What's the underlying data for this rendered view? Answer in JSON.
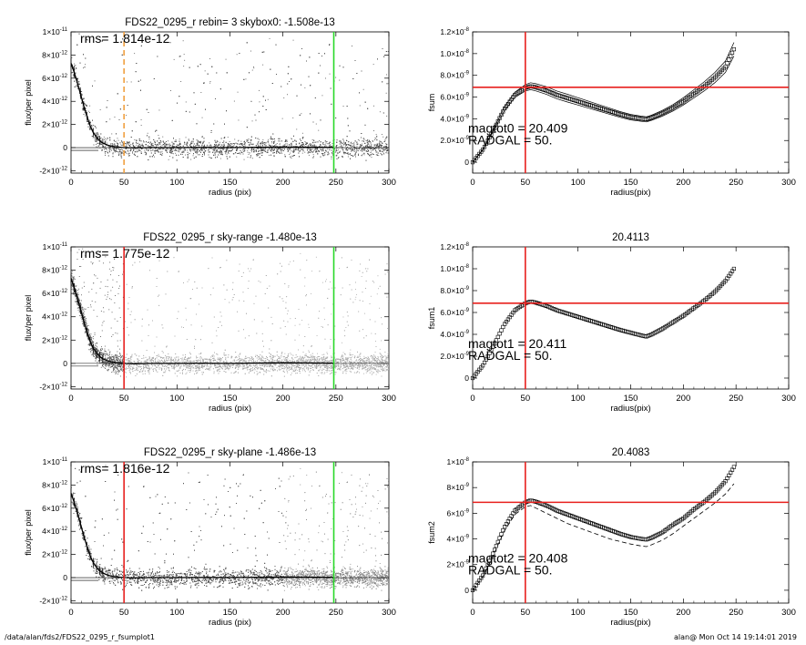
{
  "footer": {
    "left": "/data/alan/fds2/FDS22_0295_r_fsumplot1",
    "right": "alan@  Mon Oct 14 19:14:01 2019"
  },
  "colors": {
    "red": "#e8201e",
    "green": "#28d828",
    "orange": "#f0a040",
    "scatter_dark": "#505050",
    "scatter_light": "#b4b4b4"
  },
  "chart_data": [
    {
      "type": "scatter",
      "title": "FDS22_0295_r rebin= 3    skybox0: -1.508e-13",
      "xlabel": "radius (pix)",
      "ylabel": "flux/per pixel",
      "xlim": [
        0,
        300
      ],
      "ylim": [
        -2.2e-12,
        1e-11
      ],
      "x_ticks": [
        "0",
        "50",
        "100",
        "150",
        "200",
        "250",
        "300"
      ],
      "y_ticks": [
        {
          "v": 1e-11,
          "m": "1×10",
          "e": "-11"
        },
        {
          "v": 8e-12,
          "m": "8×10",
          "e": "-12"
        },
        {
          "v": 6e-12,
          "m": "6×10",
          "e": "-12"
        },
        {
          "v": 4e-12,
          "m": "4×10",
          "e": "-12"
        },
        {
          "v": 2e-12,
          "m": "2×10",
          "e": "-12"
        },
        {
          "v": 0,
          "m": "0",
          "e": ""
        },
        {
          "v": -2e-12,
          "m": "-2×10",
          "e": "-12"
        }
      ],
      "annotation": "rms= 1.814e-12",
      "vlines": [
        {
          "x": 50,
          "color": "orange",
          "dashed": true
        },
        {
          "x": 248,
          "color": "green",
          "dashed": false
        }
      ],
      "profile": {
        "x": [
          0,
          3,
          6,
          9,
          12,
          15,
          18,
          21,
          24,
          27,
          30,
          35,
          40,
          45,
          50,
          60,
          75,
          100,
          125,
          150,
          175,
          200,
          225,
          248
        ],
        "y": [
          7.3e-12,
          6.5e-12,
          5.6e-12,
          4.6e-12,
          3.6e-12,
          2.7e-12,
          1.9e-12,
          1.3e-12,
          9e-13,
          6e-13,
          4e-13,
          2e-13,
          1e-13,
          4e-14,
          0,
          -3e-14,
          0,
          0,
          2e-14,
          0,
          3e-14,
          5e-14,
          4e-14,
          2e-14
        ]
      },
      "scatter_bands": [
        {
          "x": [
            0,
            300
          ],
          "shade": "dark"
        }
      ]
    },
    {
      "type": "scatter",
      "title": "FDS22_0295_r sky-range -1.480e-13",
      "xlabel": "radius (pix)",
      "ylabel": "flux/per pixel",
      "xlim": [
        0,
        300
      ],
      "ylim": [
        -2.2e-12,
        1e-11
      ],
      "x_ticks": [
        "0",
        "50",
        "100",
        "150",
        "200",
        "250",
        "300"
      ],
      "y_ticks": [
        {
          "v": 1e-11,
          "m": "1×10",
          "e": "-11"
        },
        {
          "v": 8e-12,
          "m": "8×10",
          "e": "-12"
        },
        {
          "v": 6e-12,
          "m": "6×10",
          "e": "-12"
        },
        {
          "v": 4e-12,
          "m": "4×10",
          "e": "-12"
        },
        {
          "v": 2e-12,
          "m": "2×10",
          "e": "-12"
        },
        {
          "v": 0,
          "m": "0",
          "e": ""
        },
        {
          "v": -2e-12,
          "m": "-2×10",
          "e": "-12"
        }
      ],
      "annotation": "rms= 1.775e-12",
      "vlines": [
        {
          "x": 50,
          "color": "red",
          "dashed": false
        },
        {
          "x": 248,
          "color": "green",
          "dashed": false
        }
      ],
      "profile": {
        "x": [
          0,
          3,
          6,
          9,
          12,
          15,
          18,
          21,
          24,
          27,
          30,
          35,
          40,
          45,
          50,
          60,
          75,
          100,
          125,
          150,
          175,
          200,
          225,
          248
        ],
        "y": [
          7.3e-12,
          6.5e-12,
          5.6e-12,
          4.6e-12,
          3.6e-12,
          2.7e-12,
          1.9e-12,
          1.3e-12,
          9e-13,
          6e-13,
          4e-13,
          2e-13,
          1e-13,
          4e-14,
          0,
          -3e-14,
          0,
          0,
          2e-14,
          0,
          3e-14,
          5e-14,
          4e-14,
          2e-14
        ]
      },
      "scatter_bands": [
        {
          "x": [
            0,
            50
          ],
          "shade": "dark"
        },
        {
          "x": [
            50,
            200
          ],
          "shade": "light"
        },
        {
          "x": [
            200,
            300
          ],
          "shade": "light"
        }
      ]
    },
    {
      "type": "scatter",
      "title": "FDS22_0295_r sky-plane -1.486e-13",
      "xlabel": "radius (pix)",
      "ylabel": "flux/per pixel",
      "xlim": [
        0,
        300
      ],
      "ylim": [
        -2.2e-12,
        1e-11
      ],
      "x_ticks": [
        "0",
        "50",
        "100",
        "150",
        "200",
        "250",
        "300"
      ],
      "y_ticks": [
        {
          "v": 1e-11,
          "m": "1×10",
          "e": "-11"
        },
        {
          "v": 8e-12,
          "m": "8×10",
          "e": "-12"
        },
        {
          "v": 6e-12,
          "m": "6×10",
          "e": "-12"
        },
        {
          "v": 4e-12,
          "m": "4×10",
          "e": "-12"
        },
        {
          "v": 2e-12,
          "m": "2×10",
          "e": "-12"
        },
        {
          "v": 0,
          "m": "0",
          "e": ""
        },
        {
          "v": -2e-12,
          "m": "-2×10",
          "e": "-12"
        }
      ],
      "annotation": "rms= 1.816e-12",
      "vlines": [
        {
          "x": 50,
          "color": "red",
          "dashed": false
        },
        {
          "x": 248,
          "color": "green",
          "dashed": false
        }
      ],
      "profile": {
        "x": [
          0,
          3,
          6,
          9,
          12,
          15,
          18,
          21,
          24,
          27,
          30,
          35,
          40,
          45,
          50,
          60,
          75,
          100,
          125,
          150,
          175,
          200,
          225,
          248
        ],
        "y": [
          7.3e-12,
          6.5e-12,
          5.6e-12,
          4.6e-12,
          3.6e-12,
          2.7e-12,
          1.9e-12,
          1.3e-12,
          9e-13,
          6e-13,
          4e-13,
          2e-13,
          1e-13,
          4e-14,
          0,
          -3e-14,
          0,
          0,
          2e-14,
          0,
          3e-14,
          5e-14,
          4e-14,
          2e-14
        ]
      },
      "scatter_bands": [
        {
          "x": [
            0,
            200
          ],
          "shade": "dark"
        },
        {
          "x": [
            200,
            300
          ],
          "shade": "mid"
        }
      ]
    },
    {
      "type": "line",
      "title": "",
      "xlabel": "radius(pix)",
      "ylabel": "fsum",
      "xlim": [
        0,
        300
      ],
      "ylim": [
        -1e-09,
        1.2e-08
      ],
      "x_ticks": [
        "0",
        "50",
        "100",
        "150",
        "200",
        "250",
        "300"
      ],
      "y_ticks": [
        {
          "v": 1.2e-08,
          "m": "1.2×10",
          "e": "-8"
        },
        {
          "v": 1e-08,
          "m": "1.0×10",
          "e": "-8"
        },
        {
          "v": 8e-09,
          "m": "8.0×10",
          "e": "-9"
        },
        {
          "v": 6e-09,
          "m": "6.0×10",
          "e": "-9"
        },
        {
          "v": 4e-09,
          "m": "4.0×10",
          "e": "-9"
        },
        {
          "v": 2e-09,
          "m": "2.0×10",
          "e": "-9"
        },
        {
          "v": 0,
          "m": "0",
          "e": ""
        }
      ],
      "annotations": [
        "magtot0 =  20.409",
        "RADGAL =     50."
      ],
      "vline": {
        "x": 50
      },
      "hline": {
        "y": 6.9e-09
      },
      "series": [
        {
          "marker": "square",
          "x": [
            0,
            10,
            20,
            30,
            40,
            50,
            55,
            60,
            70,
            80,
            90,
            100,
            110,
            120,
            130,
            140,
            150,
            160,
            165,
            170,
            180,
            190,
            200,
            210,
            220,
            230,
            240,
            248
          ],
          "y": [
            0,
            1.2e-09,
            3e-09,
            4.9e-09,
            6.2e-09,
            6.85e-09,
            7e-09,
            6.9e-09,
            6.6e-09,
            6.2e-09,
            5.9e-09,
            5.6e-09,
            5.3e-09,
            5e-09,
            4.7e-09,
            4.4e-09,
            4.15e-09,
            4e-09,
            3.95e-09,
            4.1e-09,
            4.5e-09,
            5e-09,
            5.6e-09,
            6.3e-09,
            7e-09,
            7.8e-09,
            8.8e-09,
            1.04e-08
          ]
        }
      ],
      "envelope": {
        "upper": 1.06,
        "lower": 0.94
      }
    },
    {
      "type": "line",
      "title": "20.4113",
      "xlabel": "radius(pix)",
      "ylabel": "fsum1",
      "xlim": [
        0,
        300
      ],
      "ylim": [
        -1e-09,
        1.2e-08
      ],
      "x_ticks": [
        "0",
        "50",
        "100",
        "150",
        "200",
        "250",
        "300"
      ],
      "y_ticks": [
        {
          "v": 1.2e-08,
          "m": "1.2×10",
          "e": "-8"
        },
        {
          "v": 1e-08,
          "m": "1.0×10",
          "e": "-8"
        },
        {
          "v": 8e-09,
          "m": "8.0×10",
          "e": "-9"
        },
        {
          "v": 6e-09,
          "m": "6.0×10",
          "e": "-9"
        },
        {
          "v": 4e-09,
          "m": "4.0×10",
          "e": "-9"
        },
        {
          "v": 2e-09,
          "m": "2.0×10",
          "e": "-9"
        },
        {
          "v": 0,
          "m": "0",
          "e": ""
        }
      ],
      "annotations": [
        "magtot1 =  20.411",
        "RADGAL =     50."
      ],
      "vline": {
        "x": 50
      },
      "hline": {
        "y": 6.85e-09
      },
      "series": [
        {
          "marker": "square",
          "x": [
            0,
            10,
            20,
            30,
            40,
            50,
            55,
            60,
            70,
            80,
            90,
            100,
            110,
            120,
            130,
            140,
            150,
            160,
            165,
            170,
            180,
            190,
            200,
            210,
            220,
            230,
            240,
            248
          ],
          "y": [
            0,
            1.2e-09,
            3e-09,
            4.9e-09,
            6.2e-09,
            6.85e-09,
            7e-09,
            6.9e-09,
            6.6e-09,
            6.2e-09,
            5.9e-09,
            5.6e-09,
            5.3e-09,
            5e-09,
            4.7e-09,
            4.4e-09,
            4.15e-09,
            3.9e-09,
            3.8e-09,
            4e-09,
            4.5e-09,
            5.1e-09,
            5.7e-09,
            6.4e-09,
            7.1e-09,
            7.9e-09,
            8.9e-09,
            1e-08
          ]
        }
      ]
    },
    {
      "type": "line",
      "title": "20.4083",
      "xlabel": "radius(pix)",
      "ylabel": "fsum2",
      "xlim": [
        0,
        300
      ],
      "ylim": [
        -1e-09,
        1e-08
      ],
      "x_ticks": [
        "0",
        "50",
        "100",
        "150",
        "200",
        "250",
        "300"
      ],
      "y_ticks": [
        {
          "v": 1e-08,
          "m": "1×10",
          "e": "-8"
        },
        {
          "v": 8e-09,
          "m": "8×10",
          "e": "-9"
        },
        {
          "v": 6e-09,
          "m": "6×10",
          "e": "-9"
        },
        {
          "v": 4e-09,
          "m": "4×10",
          "e": "-9"
        },
        {
          "v": 2e-09,
          "m": "2×10",
          "e": "-9"
        },
        {
          "v": 0,
          "m": "0",
          "e": ""
        }
      ],
      "annotations": [
        "magtot2 =  20.408",
        "RADGAL =     50."
      ],
      "vline": {
        "x": 50
      },
      "hline": {
        "y": 6.85e-09
      },
      "series": [
        {
          "marker": "square",
          "x": [
            0,
            10,
            20,
            30,
            40,
            50,
            55,
            60,
            70,
            80,
            90,
            100,
            110,
            120,
            130,
            140,
            150,
            160,
            165,
            170,
            180,
            190,
            200,
            210,
            220,
            230,
            240,
            248
          ],
          "y": [
            0,
            1.2e-09,
            3e-09,
            4.9e-09,
            6.2e-09,
            6.85e-09,
            7e-09,
            6.9e-09,
            6.6e-09,
            6.2e-09,
            5.9e-09,
            5.6e-09,
            5.3e-09,
            5e-09,
            4.7e-09,
            4.4e-09,
            4.15e-09,
            4e-09,
            3.95e-09,
            4.1e-09,
            4.5e-09,
            5.1e-09,
            5.6e-09,
            6.3e-09,
            6.9e-09,
            7.6e-09,
            8.5e-09,
            9.6e-09
          ]
        },
        {
          "marker": "dashed",
          "x": [
            0,
            10,
            20,
            30,
            40,
            50,
            55,
            60,
            70,
            80,
            90,
            100,
            110,
            120,
            130,
            140,
            150,
            160,
            165,
            170,
            180,
            190,
            200,
            210,
            220,
            230,
            240,
            248
          ],
          "y": [
            0,
            1.1e-09,
            2.8e-09,
            4.6e-09,
            5.9e-09,
            6.5e-09,
            6.6e-09,
            6.4e-09,
            6e-09,
            5.6e-09,
            5.2e-09,
            4.9e-09,
            4.6e-09,
            4.3e-09,
            4e-09,
            3.8e-09,
            3.6e-09,
            3.45e-09,
            3.4e-09,
            3.55e-09,
            3.9e-09,
            4.4e-09,
            5e-09,
            5.6e-09,
            6.2e-09,
            6.8e-09,
            7.5e-09,
            8.3e-09
          ]
        }
      ]
    }
  ]
}
